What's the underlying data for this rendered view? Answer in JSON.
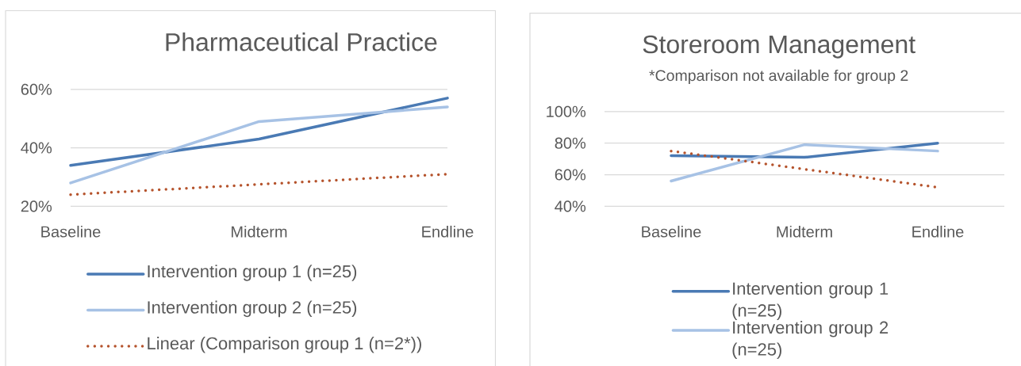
{
  "chart_data": [
    {
      "type": "line",
      "title": "Pharmaceutical Practice",
      "categories": [
        "Baseline",
        "Midterm",
        "Endline"
      ],
      "series": [
        {
          "name": "Intervention group 1 (n=25)",
          "color": "#4a7ab4",
          "values": [
            34,
            43,
            57
          ]
        },
        {
          "name": "Intervention group 2 (n=25)",
          "color": "#a7c2e5",
          "values": [
            28,
            49,
            54
          ]
        },
        {
          "name": "Linear (Comparison group 1 (n=2*))",
          "color": "#b5532c",
          "values": [
            24,
            27.5,
            31
          ],
          "line_style": "dotted"
        }
      ],
      "ylim": [
        20,
        60
      ],
      "yticks": [
        {
          "value": 20,
          "label": "20%"
        },
        {
          "value": 40,
          "label": "40%"
        },
        {
          "value": 60,
          "label": "60%"
        }
      ],
      "grid": "y",
      "legend": "bottom",
      "marker": "none",
      "line_style": "solid"
    },
    {
      "type": "line",
      "title": "Storeroom Management",
      "subtitle": "*Comparison not available for group 2",
      "categories": [
        "Baseline",
        "Midterm",
        "Endline"
      ],
      "series": [
        {
          "name": "Intervention group 1 (n=25)",
          "color": "#4a7ab4",
          "values": [
            72,
            71,
            80
          ]
        },
        {
          "name": "Intervention group 2 (n=25)",
          "color": "#a7c2e5",
          "values": [
            56,
            79,
            75
          ]
        },
        {
          "color": "#b5532c",
          "values": [
            75,
            63.5,
            52
          ],
          "line_style": "dotted"
        }
      ],
      "ylim": [
        40,
        100
      ],
      "yticks": [
        {
          "value": 40,
          "label": "40%"
        },
        {
          "value": 60,
          "label": "60%"
        },
        {
          "value": 80,
          "label": "80%"
        },
        {
          "value": 100,
          "label": "100%"
        }
      ],
      "grid": "y",
      "legend": "bottom",
      "marker": "none",
      "line_style": "solid"
    }
  ]
}
